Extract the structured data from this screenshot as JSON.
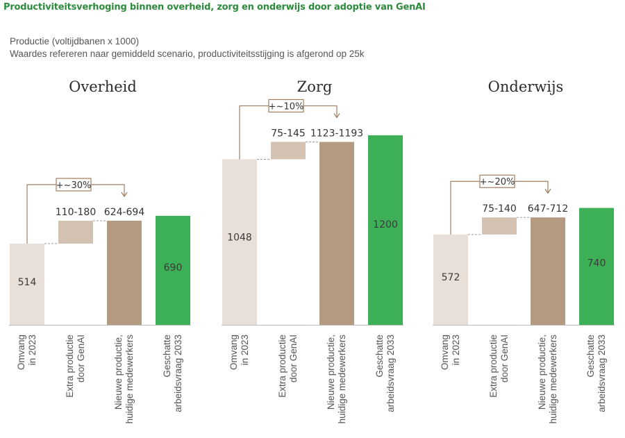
{
  "title": "Productiviteitsverhoging binnen overheid, zorg en onderwijs door adoptie van GenAI",
  "subtitle_line1": "Productie (voltijdbanen x 1000)",
  "subtitle_line2": "Waardes refereren naar gemiddeld scenario, productiviteitsstijging is afgerond op 25k",
  "colors": {
    "title": "#2e8b3e",
    "omvang": "#e8e0d8",
    "extra": "#d3c2b2",
    "nieuwe": "#b39a80",
    "geschatte": "#3daf57",
    "bracket": "#a07c5e",
    "axis": "#bbbbbb"
  },
  "chart_data": [
    {
      "type": "bar",
      "title": "Overheid",
      "categories": [
        "Omvang\nin 2023",
        "Extra productie\ndoor GenAI",
        "Nieuwe productie,\nhuidige medewerkers",
        "Geschatte\narbeidsvraag 2033"
      ],
      "values": [
        514,
        145,
        659,
        690
      ],
      "ranges": [
        null,
        [
          110,
          180
        ],
        [
          624,
          694
        ],
        null
      ],
      "labels": [
        "514",
        "110-180",
        "624-694",
        "690"
      ],
      "annotation": "+~30%"
    },
    {
      "type": "bar",
      "title": "Zorg",
      "categories": [
        "Omvang\nin 2023",
        "Extra productie\ndoor GenAI",
        "Nieuwe productie,\nhuidige medewerkers",
        "Geschatte\narbeidsvraag 2033"
      ],
      "values": [
        1048,
        110,
        1158,
        1200
      ],
      "ranges": [
        null,
        [
          75,
          145
        ],
        [
          1123,
          1193
        ],
        null
      ],
      "labels": [
        "1048",
        "75-145",
        "1123-1193",
        "1200"
      ],
      "annotation": "+~10%"
    },
    {
      "type": "bar",
      "title": "Onderwijs",
      "categories": [
        "Omvang\nin 2023",
        "Extra productie\ndoor GenAI",
        "Nieuwe productie,\nhuidige medewerkers",
        "Geschatte\narbeidsvraag 2033"
      ],
      "values": [
        572,
        108,
        680,
        740
      ],
      "ranges": [
        null,
        [
          75,
          140
        ],
        [
          647,
          712
        ],
        null
      ],
      "labels": [
        "572",
        "75-140",
        "647-712",
        "740"
      ],
      "annotation": "+~20%"
    }
  ]
}
